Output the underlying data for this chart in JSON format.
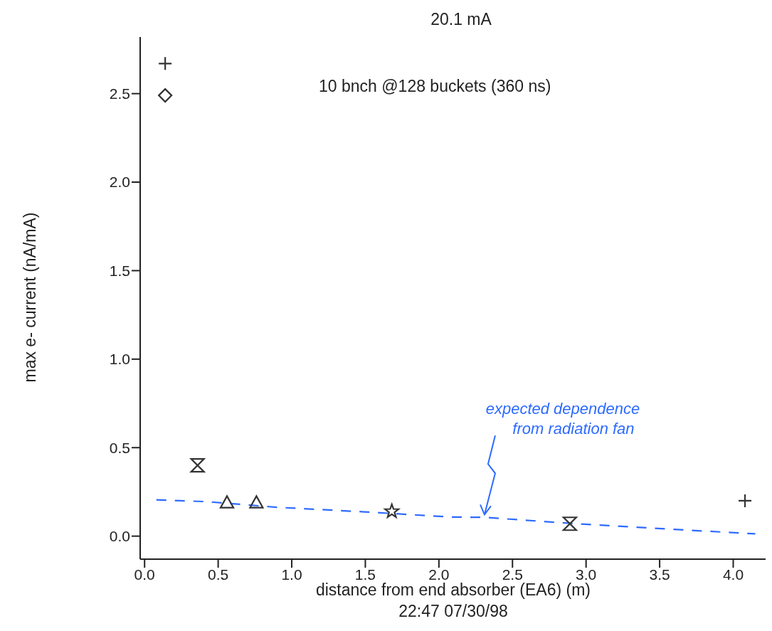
{
  "chart_data": {
    "type": "scatter",
    "title": "20.1 mA",
    "xlabel": "distance from end absorber (EA6) (m)",
    "ylabel": "max e- current (nA/mA)",
    "xlim": [
      -0.03,
      4.22
    ],
    "ylim": [
      -0.13,
      2.82
    ],
    "xticks": [
      {
        "value": 0,
        "label": "0.0"
      },
      {
        "value": 0.5,
        "label": "0.5"
      },
      {
        "value": 1,
        "label": "1.0"
      },
      {
        "value": 1.5,
        "label": "1.5"
      },
      {
        "value": 2,
        "label": "2.0"
      },
      {
        "value": 2.5,
        "label": "2.5"
      },
      {
        "value": 3,
        "label": "3.0"
      },
      {
        "value": 3.5,
        "label": "3.5"
      },
      {
        "value": 4,
        "label": "4.0"
      }
    ],
    "yticks": [
      {
        "value": 0,
        "label": "0.0"
      },
      {
        "value": 0.5,
        "label": "0.5"
      },
      {
        "value": 1,
        "label": "1.0"
      },
      {
        "value": 1.5,
        "label": "1.5"
      },
      {
        "value": 2,
        "label": "2.0"
      },
      {
        "value": 2.5,
        "label": "2.5"
      }
    ],
    "series": [
      {
        "color": "#333333",
        "marker": "cross",
        "x": [
          0.14,
          4.08
        ],
        "values": [
          2.67,
          0.2
        ]
      },
      {
        "color": "#333333",
        "marker": "diamond",
        "x": [
          0.14
        ],
        "values": [
          2.49
        ]
      },
      {
        "color": "#333333",
        "x": [
          0.36
        ],
        "values": [
          0.4
        ]
      },
      {
        "color": "#333333",
        "marker": "triangle",
        "x": [
          0.56,
          0.76
        ],
        "values": [
          0.19,
          0.19
        ]
      },
      {
        "color": "#333333",
        "marker": "star",
        "x": [
          1.68
        ],
        "values": [
          0.14
        ]
      },
      {
        "color": "#333333",
        "x": [
          2.89
        ],
        "values": [
          0.07
        ]
      },
      {
        "type": "line",
        "color": "#2e6bff",
        "marker": "none",
        "line_style": "dashed",
        "x": [
          0.08,
          0.42,
          0.9,
          1.54,
          2.08,
          2.31,
          2.9,
          3.6,
          4.15
        ],
        "values": [
          0.205,
          0.195,
          0.163,
          0.135,
          0.108,
          0.106,
          0.072,
          0.038,
          0.013
        ]
      }
    ],
    "annotations": [
      "10 bnch @128 buckets (360 ns)",
      {
        "text": "expected dependence from radiation fan",
        "x": 2.31,
        "y": 0.106
      },
      "22:47 07/30/98"
    ]
  }
}
